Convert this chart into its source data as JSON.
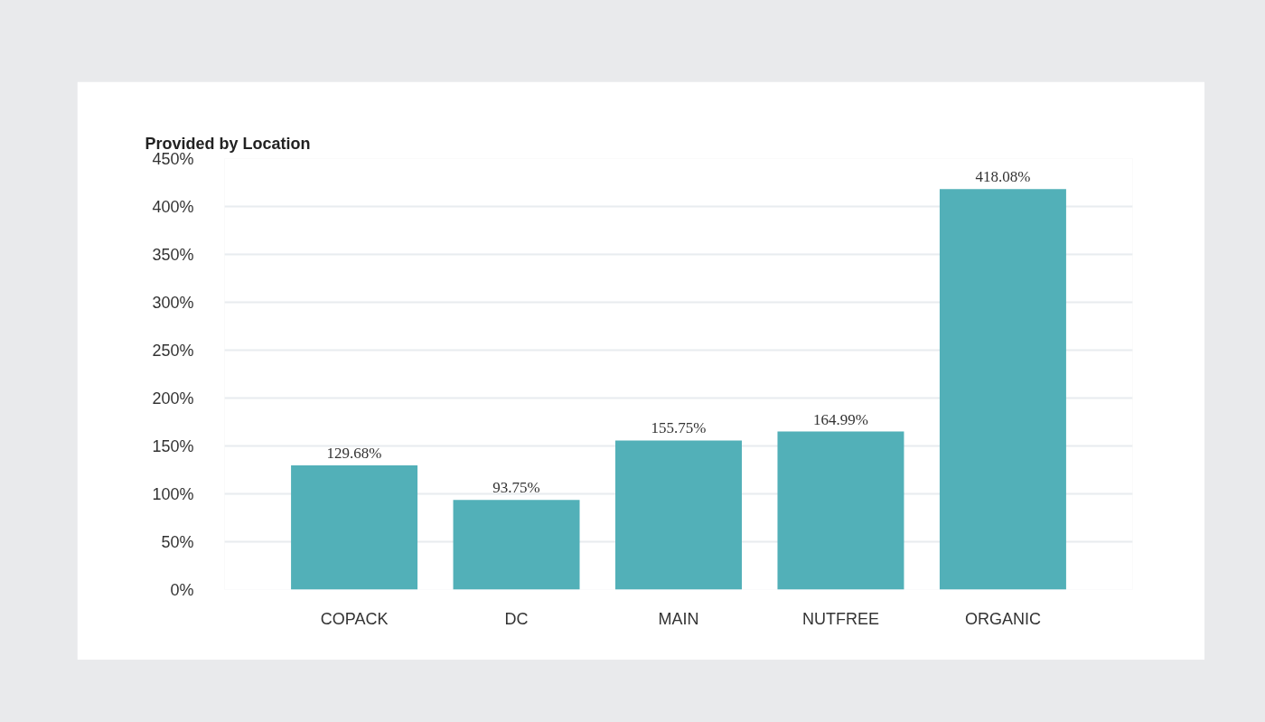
{
  "chart_data": {
    "type": "bar",
    "title": "Provided by Location",
    "categories": [
      "COPACK",
      "DC",
      "MAIN",
      "NUTFREE",
      "ORGANIC"
    ],
    "values": [
      129.68,
      93.75,
      155.75,
      164.99,
      418.08
    ],
    "value_labels": [
      "129.68%",
      "93.75%",
      "155.75%",
      "164.99%",
      "418.08%"
    ],
    "color": "#52b0b8",
    "ylim": [
      0,
      450
    ],
    "yticks": [
      {
        "value": 0,
        "label": "0%"
      },
      {
        "value": 50,
        "label": "50%"
      },
      {
        "value": 100,
        "label": "100%"
      },
      {
        "value": 150,
        "label": "150%"
      },
      {
        "value": 200,
        "label": "200%"
      },
      {
        "value": 250,
        "label": "250%"
      },
      {
        "value": 300,
        "label": "300%"
      },
      {
        "value": 350,
        "label": "350%"
      },
      {
        "value": 400,
        "label": "400%"
      },
      {
        "value": 450,
        "label": "450%"
      }
    ],
    "grid": "y"
  }
}
